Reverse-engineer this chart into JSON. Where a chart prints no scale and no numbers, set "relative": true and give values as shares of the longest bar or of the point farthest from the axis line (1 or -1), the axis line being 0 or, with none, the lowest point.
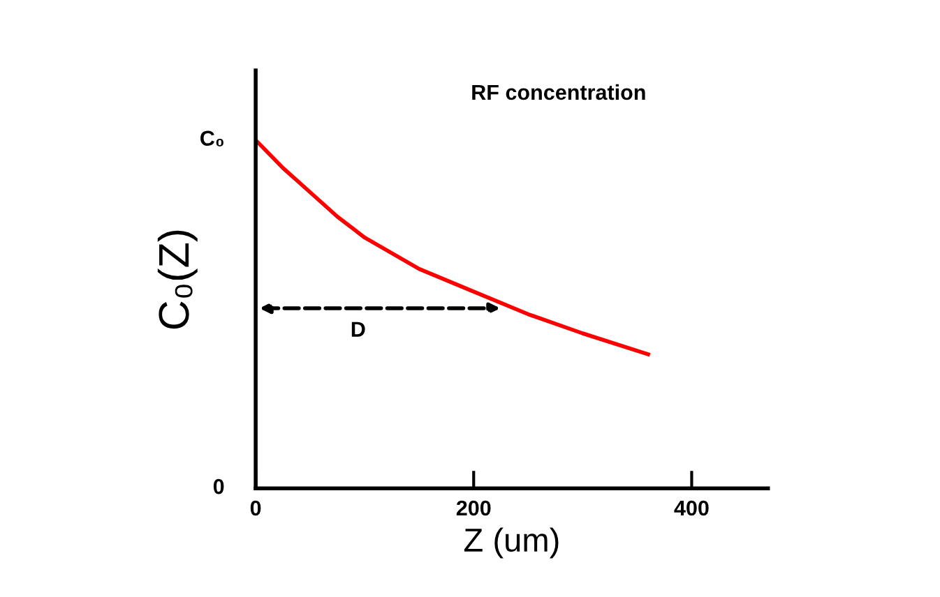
{
  "chart_data": {
    "type": "line",
    "xlabel": "Z (um)",
    "ylabel": "C₀(Z)",
    "relative": true,
    "x": [
      0,
      25,
      50,
      75,
      100,
      150,
      200,
      250,
      300,
      360
    ],
    "series": [
      {
        "color": "#ff0000",
        "values": [
          1.0,
          0.92,
          0.85,
          0.78,
          0.72,
          0.63,
          0.565,
          0.5,
          0.445,
          0.385
        ]
      }
    ],
    "xlim": [
      0,
      470
    ],
    "xticks": [
      0,
      200,
      400
    ],
    "annotations": [
      "RF concentration",
      "D",
      {
        "text": "C₀",
        "x": 0,
        "y": 1
      },
      "0"
    ],
    "grid": false,
    "legend": false,
    "marker": "none",
    "line_style": "solid"
  }
}
